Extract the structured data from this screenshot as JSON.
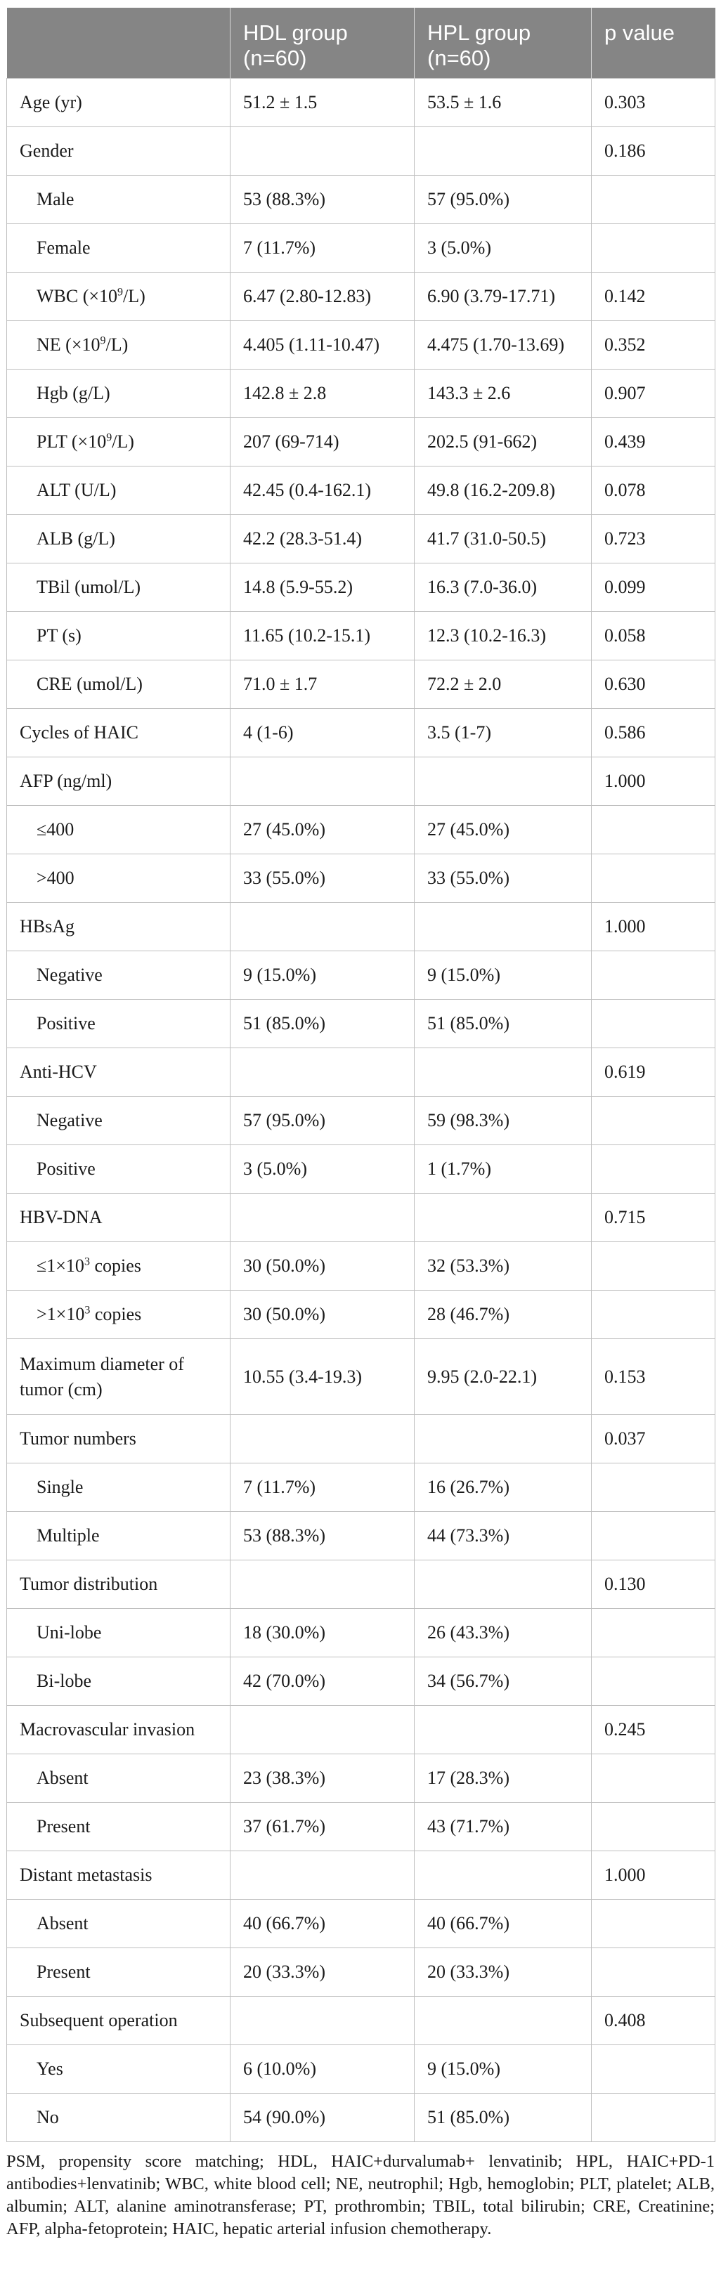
{
  "header": {
    "col1": "",
    "col2": "HDL group (n=60)",
    "col3": "HPL group (n=60)",
    "col4": "p value"
  },
  "rows": [
    {
      "label": "Age (yr)",
      "hdl": "51.2 ± 1.5",
      "hpl": "53.5 ± 1.6",
      "p": "0.303",
      "indent": false
    },
    {
      "label": "Gender",
      "hdl": "",
      "hpl": "",
      "p": "0.186",
      "indent": false
    },
    {
      "label": "Male",
      "hdl": "53 (88.3%)",
      "hpl": "57 (95.0%)",
      "p": "",
      "indent": true
    },
    {
      "label": "Female",
      "hdl": "7 (11.7%)",
      "hpl": "3 (5.0%)",
      "p": "",
      "indent": true
    },
    {
      "label": "WBC (×10",
      "label_sup": "9",
      "label_end": "/L)",
      "hdl": "6.47 (2.80-12.83)",
      "hpl": "6.90 (3.79-17.71)",
      "p": "0.142",
      "indent": true
    },
    {
      "label": "NE (×10",
      "label_sup": "9",
      "label_end": "/L)",
      "hdl": "4.405 (1.11-10.47)",
      "hpl": "4.475 (1.70-13.69)",
      "p": "0.352",
      "indent": true
    },
    {
      "label": "Hgb (g/L)",
      "hdl": "142.8 ± 2.8",
      "hpl": "143.3 ± 2.6",
      "p": "0.907",
      "indent": true
    },
    {
      "label": "PLT (×10",
      "label_sup": "9",
      "label_end": "/L)",
      "hdl": "207 (69-714)",
      "hpl": "202.5 (91-662)",
      "p": "0.439",
      "indent": true
    },
    {
      "label": "ALT (U/L)",
      "hdl": "42.45 (0.4-162.1)",
      "hpl": "49.8 (16.2-209.8)",
      "p": "0.078",
      "indent": true
    },
    {
      "label": "ALB (g/L)",
      "hdl": "42.2 (28.3-51.4)",
      "hpl": "41.7 (31.0-50.5)",
      "p": "0.723",
      "indent": true
    },
    {
      "label": "TBil (umol/L)",
      "hdl": "14.8 (5.9-55.2)",
      "hpl": "16.3 (7.0-36.0)",
      "p": "0.099",
      "indent": true
    },
    {
      "label": "PT (s)",
      "hdl": "11.65 (10.2-15.1)",
      "hpl": "12.3 (10.2-16.3)",
      "p": "0.058",
      "indent": true
    },
    {
      "label": "CRE (umol/L)",
      "hdl": "71.0 ± 1.7",
      "hpl": "72.2 ± 2.0",
      "p": "0.630",
      "indent": true
    },
    {
      "label": "Cycles of HAIC",
      "hdl": "4 (1-6)",
      "hpl": "3.5 (1-7)",
      "p": "0.586",
      "indent": false
    },
    {
      "label": "AFP (ng/ml)",
      "hdl": "",
      "hpl": "",
      "p": "1.000",
      "indent": false
    },
    {
      "label": "≤400",
      "hdl": "27 (45.0%)",
      "hpl": "27 (45.0%)",
      "p": "",
      "indent": true
    },
    {
      "label": ">400",
      "hdl": "33 (55.0%)",
      "hpl": "33 (55.0%)",
      "p": "",
      "indent": true
    },
    {
      "label": "HBsAg",
      "hdl": "",
      "hpl": "",
      "p": "1.000",
      "indent": false
    },
    {
      "label": "Negative",
      "hdl": "9 (15.0%)",
      "hpl": "9 (15.0%)",
      "p": "",
      "indent": true
    },
    {
      "label": "Positive",
      "hdl": "51 (85.0%)",
      "hpl": "51 (85.0%)",
      "p": "",
      "indent": true
    },
    {
      "label": "Anti-HCV",
      "hdl": "",
      "hpl": "",
      "p": "0.619",
      "indent": false
    },
    {
      "label": "Negative",
      "hdl": "57 (95.0%)",
      "hpl": "59 (98.3%)",
      "p": "",
      "indent": true
    },
    {
      "label": "Positive",
      "hdl": "3 (5.0%)",
      "hpl": "1 (1.7%)",
      "p": "",
      "indent": true
    },
    {
      "label": "HBV-DNA",
      "hdl": "",
      "hpl": "",
      "p": "0.715",
      "indent": false
    },
    {
      "label": "≤1×10",
      "label_sup": "3",
      "label_end": " copies",
      "hdl": "30 (50.0%)",
      "hpl": "32 (53.3%)",
      "p": "",
      "indent": true
    },
    {
      "label": ">1×10",
      "label_sup": "3",
      "label_end": " copies",
      "hdl": "30 (50.0%)",
      "hpl": "28 (46.7%)",
      "p": "",
      "indent": true
    },
    {
      "label": "Maximum diameter of tumor (cm)",
      "hdl": "10.55 (3.4-19.3)",
      "hpl": "9.95 (2.0-22.1)",
      "p": "0.153",
      "indent": false,
      "tall": true
    },
    {
      "label": "Tumor numbers",
      "hdl": "",
      "hpl": "",
      "p": "0.037",
      "indent": false
    },
    {
      "label": "Single",
      "hdl": "7 (11.7%)",
      "hpl": "16 (26.7%)",
      "p": "",
      "indent": true
    },
    {
      "label": "Multiple",
      "hdl": "53 (88.3%)",
      "hpl": "44 (73.3%)",
      "p": "",
      "indent": true
    },
    {
      "label": "Tumor distribution",
      "hdl": "",
      "hpl": "",
      "p": "0.130",
      "indent": false
    },
    {
      "label": "Uni-lobe",
      "hdl": "18 (30.0%)",
      "hpl": "26 (43.3%)",
      "p": "",
      "indent": true
    },
    {
      "label": "Bi-lobe",
      "hdl": "42 (70.0%)",
      "hpl": "34 (56.7%)",
      "p": "",
      "indent": true
    },
    {
      "label": "Macrovascular invasion",
      "hdl": "",
      "hpl": "",
      "p": "0.245",
      "indent": false
    },
    {
      "label": "Absent",
      "hdl": "23 (38.3%)",
      "hpl": "17 (28.3%)",
      "p": "",
      "indent": true
    },
    {
      "label": "Present",
      "hdl": "37 (61.7%)",
      "hpl": "43 (71.7%)",
      "p": "",
      "indent": true
    },
    {
      "label": "Distant metastasis",
      "hdl": "",
      "hpl": "",
      "p": "1.000",
      "indent": false
    },
    {
      "label": "Absent",
      "hdl": "40 (66.7%)",
      "hpl": "40 (66.7%)",
      "p": "",
      "indent": true
    },
    {
      "label": "Present",
      "hdl": "20 (33.3%)",
      "hpl": "20 (33.3%)",
      "p": "",
      "indent": true
    },
    {
      "label": "Subsequent operation",
      "hdl": "",
      "hpl": "",
      "p": "0.408",
      "indent": false
    },
    {
      "label": "Yes",
      "hdl": "6 (10.0%)",
      "hpl": "9 (15.0%)",
      "p": "",
      "indent": true
    },
    {
      "label": "No",
      "hdl": "54 (90.0%)",
      "hpl": "51 (85.0%)",
      "p": "",
      "indent": true
    }
  ],
  "footnote": "PSM, propensity score matching; HDL, HAIC+durvalumab+ lenvatinib; HPL, HAIC+PD-1 antibodies+lenvatinib; WBC, white blood cell; NE, neutrophil; Hgb, hemoglobin; PLT, platelet; ALB, albumin; ALT, alanine aminotransferase; PT, prothrombin; TBIL, total bilirubin; CRE, Creatinine; AFP, alpha-fetoprotein; HAIC, hepatic arterial infusion chemotherapy."
}
